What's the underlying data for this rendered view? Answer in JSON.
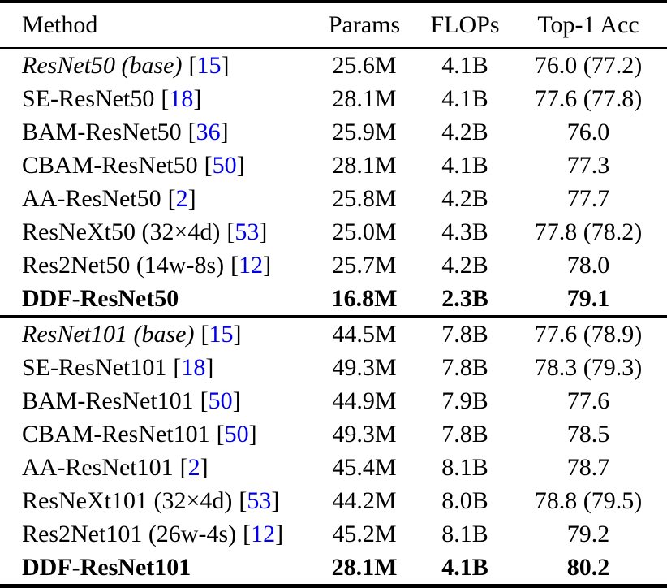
{
  "colors": {
    "citation": "#0000EE",
    "text": "#000000",
    "background": "#FFFFFF"
  },
  "table": {
    "headers": [
      "Method",
      "Params",
      "FLOPs",
      "Top-1 Acc"
    ],
    "cite_open": "[",
    "cite_close": "]",
    "groups": [
      {
        "rows": [
          {
            "method": "ResNet50 (base)",
            "cite": "15",
            "params": "25.6M",
            "flops": "4.1B",
            "acc": "76.0 (77.2)"
          },
          {
            "method": "SE-ResNet50",
            "cite": "18",
            "params": "28.1M",
            "flops": "4.1B",
            "acc": "77.6 (77.8)"
          },
          {
            "method": "BAM-ResNet50",
            "cite": "36",
            "params": "25.9M",
            "flops": "4.2B",
            "acc": "76.0"
          },
          {
            "method": "CBAM-ResNet50",
            "cite": "50",
            "params": "28.1M",
            "flops": "4.1B",
            "acc": "77.3"
          },
          {
            "method": "AA-ResNet50",
            "cite": "2",
            "params": "25.8M",
            "flops": "4.2B",
            "acc": "77.7"
          },
          {
            "method": "ResNeXt50 (32×4d)",
            "cite": "53",
            "params": "25.0M",
            "flops": "4.3B",
            "acc": "77.8 (78.2)"
          },
          {
            "method": "Res2Net50 (14w-8s)",
            "cite": "12",
            "params": "25.7M",
            "flops": "4.2B",
            "acc": "78.0"
          },
          {
            "method": "DDF-ResNet50",
            "params": "16.8M",
            "flops": "2.3B",
            "acc": "79.1"
          }
        ]
      },
      {
        "rows": [
          {
            "method": "ResNet101 (base)",
            "cite": "15",
            "params": "44.5M",
            "flops": "7.8B",
            "acc": "77.6 (78.9)"
          },
          {
            "method": "SE-ResNet101",
            "cite": "18",
            "params": "49.3M",
            "flops": "7.8B",
            "acc": "78.3 (79.3)"
          },
          {
            "method": "BAM-ResNet101",
            "cite": "50",
            "params": "44.9M",
            "flops": "7.9B",
            "acc": "77.6"
          },
          {
            "method": "CBAM-ResNet101",
            "cite": "50",
            "params": "49.3M",
            "flops": "7.8B",
            "acc": "78.5"
          },
          {
            "method": "AA-ResNet101",
            "cite": "2",
            "params": "45.4M",
            "flops": "8.1B",
            "acc": "78.7"
          },
          {
            "method": "ResNeXt101 (32×4d)",
            "cite": "53",
            "params": "44.2M",
            "flops": "8.0B",
            "acc": "78.8 (79.5)"
          },
          {
            "method": "Res2Net101 (26w-4s)",
            "cite": "12",
            "params": "45.2M",
            "flops": "8.1B",
            "acc": "79.2"
          },
          {
            "method": "DDF-ResNet101",
            "params": "28.1M",
            "flops": "4.1B",
            "acc": "80.2"
          }
        ]
      }
    ]
  }
}
